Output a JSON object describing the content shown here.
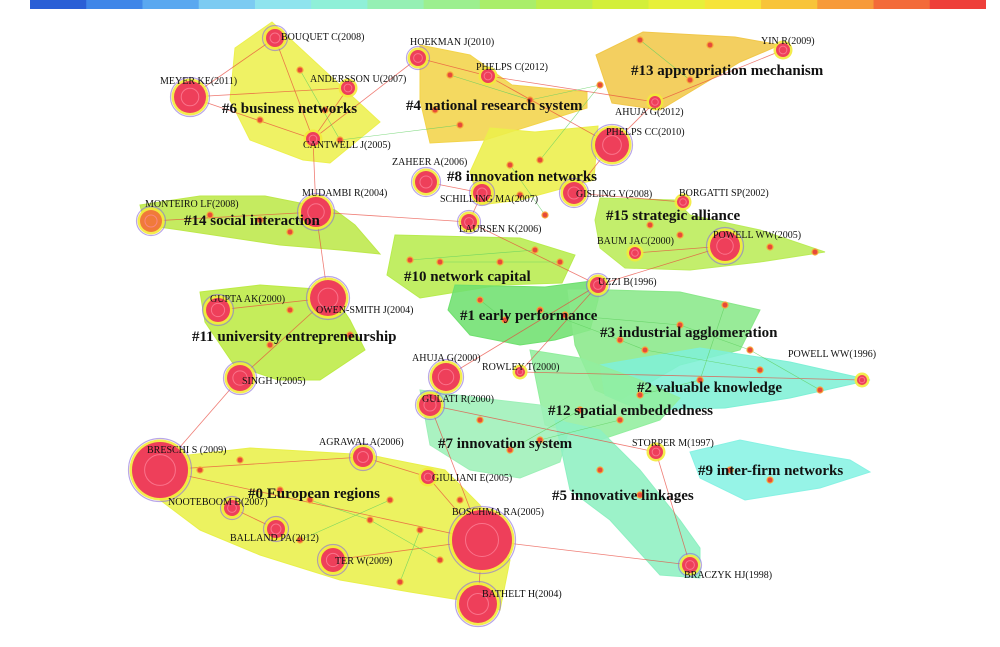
{
  "colorbar": {
    "colors": [
      "#2a5fd6",
      "#3f86e8",
      "#5aa8f0",
      "#7ccbf2",
      "#8fe4ee",
      "#8ff0d8",
      "#95f0b4",
      "#9cef8f",
      "#a9ee6a",
      "#bdee4c",
      "#d3ef3a",
      "#e7f03a",
      "#f6e43a",
      "#f8c43a",
      "#f79a3a",
      "#f36b3a",
      "#ee3f3a"
    ]
  },
  "clusters": [
    {
      "id": "c0",
      "label": "#0 European regions",
      "color": "#e9f04a"
    },
    {
      "id": "c1",
      "label": "#1 early performance",
      "color": "#6fe06f"
    },
    {
      "id": "c2",
      "label": "#2 valuable knowledge",
      "color": "#7ff0d6"
    },
    {
      "id": "c3",
      "label": "#3 industrial agglomeration",
      "color": "#8ae88a"
    },
    {
      "id": "c4",
      "label": "#4 national research system",
      "color": "#f3d44a"
    },
    {
      "id": "c5",
      "label": "#5 innovative linkages",
      "color": "#8ef0c2"
    },
    {
      "id": "c6",
      "label": "#6 business networks",
      "color": "#edf04e"
    },
    {
      "id": "c7",
      "label": "#7 innovation system",
      "color": "#9ef0b8"
    },
    {
      "id": "c8",
      "label": "#8 innovation networks",
      "color": "#ecef4a"
    },
    {
      "id": "c9",
      "label": "#9 inter-firm networks",
      "color": "#88f2e4"
    },
    {
      "id": "c10",
      "label": "#10 network capital",
      "color": "#b8ec4e"
    },
    {
      "id": "c11",
      "label": "#11 university entrepreneurship",
      "color": "#bdeb44"
    },
    {
      "id": "c12",
      "label": "#12 spatial embeddedness",
      "color": "#92ee9e"
    },
    {
      "id": "c13",
      "label": "#13 appropriation mechanism",
      "color": "#f1c84a"
    },
    {
      "id": "c14",
      "label": "#14 social interaction",
      "color": "#bde84a"
    },
    {
      "id": "c15",
      "label": "#15 strategic alliance",
      "color": "#bbec58"
    }
  ],
  "nodes": [
    {
      "id": "bouquet",
      "label": "BOUQUET C(2008)"
    },
    {
      "id": "meyer",
      "label": "MEYER KE(2011)"
    },
    {
      "id": "andersson",
      "label": "ANDERSSON U(2007)"
    },
    {
      "id": "cantwell",
      "label": "CANTWELL J(2005)"
    },
    {
      "id": "hoekman",
      "label": "HOEKMAN J(2010)"
    },
    {
      "id": "phelpsc",
      "label": "PHELPS C(2012)"
    },
    {
      "id": "yin",
      "label": "YIN R(2009)"
    },
    {
      "id": "ahuja2012",
      "label": "AHUJA G(2012)"
    },
    {
      "id": "phelpscc",
      "label": "PHELPS CC(2010)"
    },
    {
      "id": "zaheer",
      "label": "ZAHEER A(2006)"
    },
    {
      "id": "mudambi",
      "label": "MUDAMBI R(2004)"
    },
    {
      "id": "schilling",
      "label": "SCHILLING MA(2007)"
    },
    {
      "id": "gisling",
      "label": "GISLING V(2008)"
    },
    {
      "id": "borgatti",
      "label": "BORGATTI SP(2002)"
    },
    {
      "id": "monteiro",
      "label": "MONTEIRO LF(2008)"
    },
    {
      "id": "laursen",
      "label": "LAURSEN K(2006)"
    },
    {
      "id": "baum",
      "label": "BAUM JAC(2000)"
    },
    {
      "id": "powell2005",
      "label": "POWELL WW(2005)"
    },
    {
      "id": "uzzi",
      "label": "UZZI B(1996)"
    },
    {
      "id": "gupta",
      "label": "GUPTA AK(2000)"
    },
    {
      "id": "owensmith",
      "label": "OWEN-SMITH J(2004)"
    },
    {
      "id": "powell1996",
      "label": "POWELL WW(1996)"
    },
    {
      "id": "ahuja2000",
      "label": "AHUJA G(2000)"
    },
    {
      "id": "rowley",
      "label": "ROWLEY T(2000)"
    },
    {
      "id": "singh",
      "label": "SINGH J(2005)"
    },
    {
      "id": "gulati",
      "label": "GULATI R(2000)"
    },
    {
      "id": "storper",
      "label": "STORPER M(1997)"
    },
    {
      "id": "breschi",
      "label": "BRESCHI S (2009)"
    },
    {
      "id": "agrawal",
      "label": "AGRAWAL A(2006)"
    },
    {
      "id": "giuliani",
      "label": "GIULIANI E(2005)"
    },
    {
      "id": "nooteboom",
      "label": "NOOTEBOOM B(2007)"
    },
    {
      "id": "boschma",
      "label": "BOSCHMA RA(2005)"
    },
    {
      "id": "balland",
      "label": "BALLAND PA(2012)"
    },
    {
      "id": "ter",
      "label": "TER W(2009)"
    },
    {
      "id": "braczyk",
      "label": "BRACZYK HJ(1998)"
    },
    {
      "id": "bathelt",
      "label": "BATHELT H(2004)"
    }
  ]
}
